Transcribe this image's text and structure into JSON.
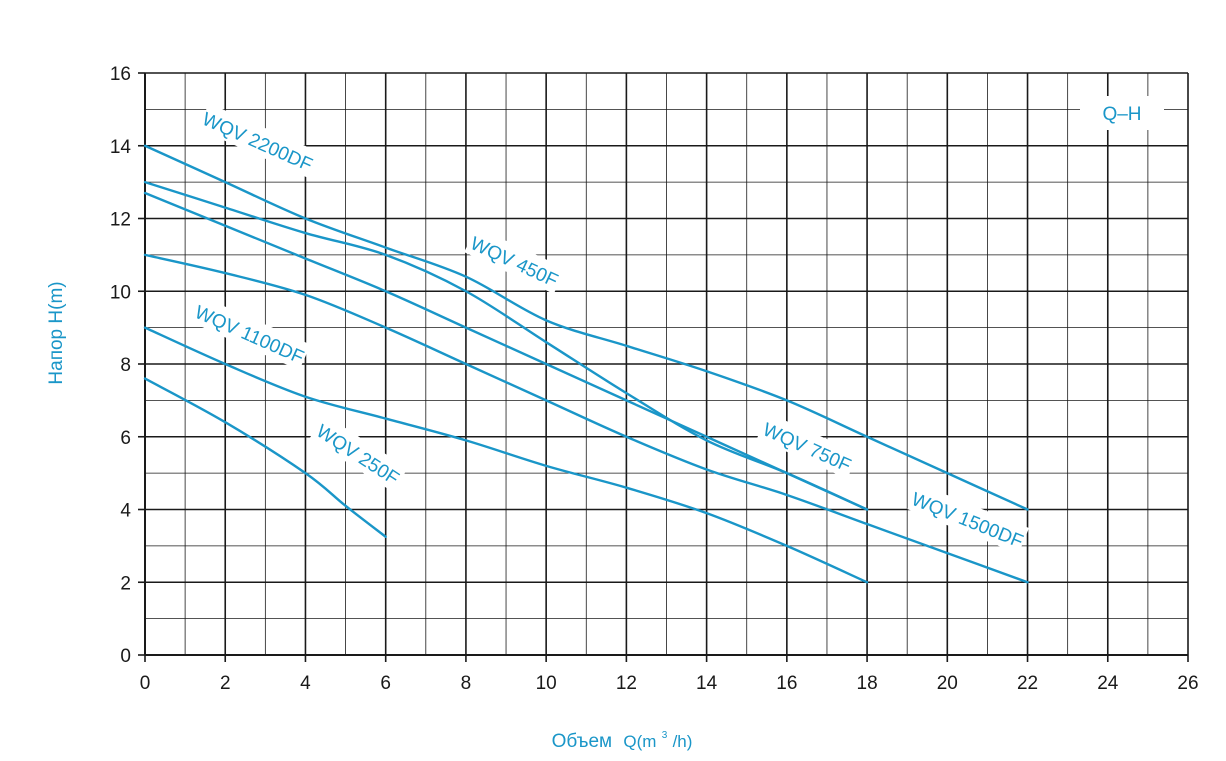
{
  "colors": {
    "curve": "#1a96c8",
    "grid": "#1a1a1a",
    "text": "#1a1a1a"
  },
  "chart_data": {
    "type": "line",
    "title": "Q–H",
    "xlabel": "Объем Q(m³/h)",
    "xlabel_parts": {
      "main": "Объем",
      "q": "Q(m",
      "sup": "3",
      "end": "/h)"
    },
    "ylabel": "Напор H(m)",
    "xlim": [
      0,
      26
    ],
    "ylim": [
      0,
      16
    ],
    "x_ticks": [
      0,
      2,
      4,
      6,
      8,
      10,
      12,
      14,
      16,
      18,
      20,
      22,
      24,
      26
    ],
    "y_ticks": [
      0,
      2,
      4,
      6,
      8,
      10,
      12,
      14,
      16
    ],
    "grid": true,
    "legend": "none",
    "series": [
      {
        "name": "WQV 2200DF",
        "points": [
          [
            0,
            14
          ],
          [
            2,
            13
          ],
          [
            4,
            12
          ],
          [
            6,
            11.2
          ],
          [
            8,
            10.4
          ],
          [
            10,
            9.2
          ],
          [
            12,
            8.5
          ],
          [
            14,
            7.8
          ],
          [
            16,
            7
          ],
          [
            18,
            6
          ],
          [
            20,
            5
          ],
          [
            22,
            4
          ]
        ]
      },
      {
        "name": "WQV 450F",
        "points": [
          [
            0,
            13
          ],
          [
            2,
            12.3
          ],
          [
            4,
            11.6
          ],
          [
            6,
            11
          ],
          [
            8,
            10
          ],
          [
            10,
            8.6
          ],
          [
            12,
            7.2
          ],
          [
            14,
            5.9
          ],
          [
            16,
            5
          ],
          [
            18,
            4
          ]
        ]
      },
      {
        "name": "WQV 750F",
        "points": [
          [
            0,
            12.7
          ],
          [
            2,
            11.8
          ],
          [
            4,
            10.9
          ],
          [
            6,
            10
          ],
          [
            8,
            9
          ],
          [
            10,
            8
          ],
          [
            12,
            7
          ],
          [
            14,
            6
          ],
          [
            16,
            5
          ],
          [
            18,
            4
          ]
        ]
      },
      {
        "name": "WQV 1500DF",
        "points": [
          [
            0,
            11
          ],
          [
            2,
            10.5
          ],
          [
            4,
            9.9
          ],
          [
            6,
            9
          ],
          [
            8,
            8
          ],
          [
            10,
            7
          ],
          [
            12,
            6
          ],
          [
            14,
            5.1
          ],
          [
            16,
            4.4
          ],
          [
            18,
            3.6
          ],
          [
            20,
            2.8
          ],
          [
            22,
            2
          ]
        ]
      },
      {
        "name": "WQV 1100DF",
        "points": [
          [
            0,
            9
          ],
          [
            2,
            8
          ],
          [
            4,
            7.1
          ],
          [
            6,
            6.5
          ],
          [
            8,
            5.9
          ],
          [
            10,
            5.2
          ],
          [
            12,
            4.6
          ],
          [
            14,
            3.9
          ],
          [
            16,
            3
          ],
          [
            18,
            2
          ]
        ]
      },
      {
        "name": "WQV 250F",
        "points": [
          [
            0,
            7.6
          ],
          [
            2,
            6.4
          ],
          [
            4,
            5
          ],
          [
            5,
            4.1
          ],
          [
            6,
            3.25
          ]
        ]
      }
    ],
    "annotations": [
      {
        "text": "WQV 2200DF",
        "x": 2.8,
        "y": 14.1,
        "angle": 24
      },
      {
        "text": "WQV 450F",
        "x": 9.2,
        "y": 10.8,
        "angle": 25
      },
      {
        "text": "WQV 1100DF",
        "x": 2.6,
        "y": 8.8,
        "angle": 24
      },
      {
        "text": "WQV 250F",
        "x": 5.3,
        "y": 5.5,
        "angle": 33
      },
      {
        "text": "WQV 750F",
        "x": 16.5,
        "y": 5.7,
        "angle": 24
      },
      {
        "text": "WQV 1500DF",
        "x": 20.5,
        "y": 3.7,
        "angle": 22
      }
    ]
  }
}
